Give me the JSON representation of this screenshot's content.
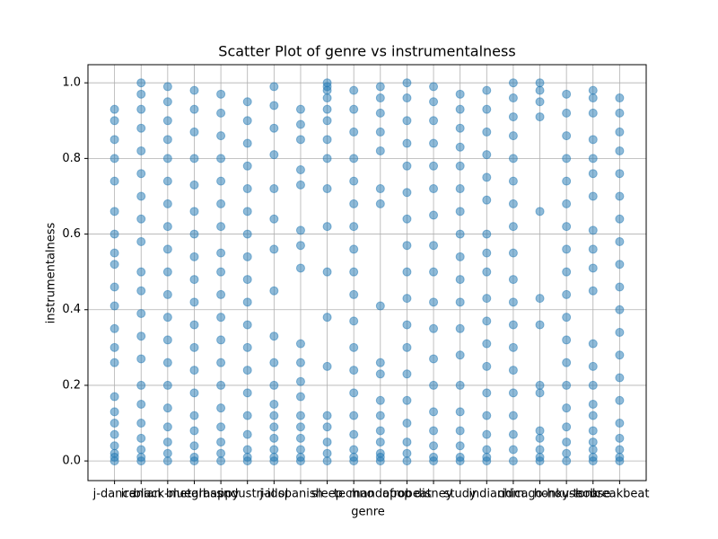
{
  "chart_data": {
    "type": "scatter",
    "title": "Scatter Plot of genre vs instrumentalness",
    "x_label": "genre",
    "y_label": "instrumentalness",
    "categories": [
      "j-dance",
      "iranian",
      "black-metal",
      "bluegrass",
      "happy",
      "industrial",
      "j-idol",
      "spanish",
      "sleep",
      "techno",
      "mandopop",
      "afrobeat",
      "disney",
      "study",
      "indian",
      "idm",
      "chicago-house",
      "honky-tonk",
      "house",
      "breakbeat"
    ],
    "values": [
      [
        0.93,
        0.9,
        0.85,
        0.8,
        0.74,
        0.66,
        0.6,
        0.55,
        0.52,
        0.46,
        0.41,
        0.35,
        0.3,
        0.26,
        0.17,
        0.13,
        0.1,
        0.07,
        0.04,
        0.02,
        0.01,
        0
      ],
      [
        1.0,
        0.97,
        0.93,
        0.88,
        0.82,
        0.76,
        0.7,
        0.64,
        0.58,
        0.5,
        0.45,
        0.39,
        0.33,
        0.27,
        0.2,
        0.15,
        0.1,
        0.06,
        0.03,
        0.01,
        0
      ],
      [
        0.99,
        0.95,
        0.9,
        0.85,
        0.8,
        0.74,
        0.68,
        0.62,
        0.56,
        0.5,
        0.44,
        0.38,
        0.32,
        0.26,
        0.2,
        0.14,
        0.09,
        0.05,
        0.02,
        0
      ],
      [
        0.98,
        0.93,
        0.87,
        0.8,
        0.73,
        0.66,
        0.6,
        0.54,
        0.48,
        0.42,
        0.36,
        0.3,
        0.24,
        0.18,
        0.12,
        0.08,
        0.04,
        0.01,
        0
      ],
      [
        0.97,
        0.92,
        0.86,
        0.8,
        0.74,
        0.68,
        0.62,
        0.55,
        0.5,
        0.44,
        0.38,
        0.32,
        0.26,
        0.2,
        0.14,
        0.09,
        0.05,
        0.02,
        0
      ],
      [
        0.95,
        0.9,
        0.84,
        0.78,
        0.72,
        0.66,
        0.6,
        0.54,
        0.48,
        0.42,
        0.36,
        0.3,
        0.24,
        0.18,
        0.12,
        0.07,
        0.03,
        0.01,
        0
      ],
      [
        0.99,
        0.94,
        0.88,
        0.81,
        0.72,
        0.64,
        0.56,
        0.45,
        0.33,
        0.26,
        0.2,
        0.15,
        0.12,
        0.09,
        0.06,
        0.03,
        0.01,
        0
      ],
      [
        0.93,
        0.89,
        0.85,
        0.77,
        0.73,
        0.61,
        0.57,
        0.51,
        0.31,
        0.26,
        0.21,
        0.17,
        0.12,
        0.09,
        0.06,
        0.03,
        0.01,
        0
      ],
      [
        1.0,
        0.99,
        0.98,
        0.96,
        0.93,
        0.9,
        0.85,
        0.8,
        0.72,
        0.62,
        0.5,
        0.38,
        0.25,
        0.12,
        0.09,
        0.05,
        0.02,
        0
      ],
      [
        0.98,
        0.93,
        0.87,
        0.8,
        0.74,
        0.68,
        0.62,
        0.56,
        0.5,
        0.44,
        0.37,
        0.3,
        0.24,
        0.18,
        0.12,
        0.07,
        0.03,
        0.01,
        0
      ],
      [
        0.99,
        0.96,
        0.92,
        0.87,
        0.82,
        0.72,
        0.68,
        0.41,
        0.26,
        0.23,
        0.16,
        0.12,
        0.08,
        0.05,
        0.02,
        0.01,
        0
      ],
      [
        1.0,
        0.96,
        0.9,
        0.84,
        0.78,
        0.71,
        0.64,
        0.57,
        0.5,
        0.43,
        0.36,
        0.3,
        0.23,
        0.16,
        0.1,
        0.05,
        0.02,
        0
      ],
      [
        0.99,
        0.95,
        0.9,
        0.84,
        0.78,
        0.72,
        0.65,
        0.57,
        0.5,
        0.42,
        0.35,
        0.27,
        0.2,
        0.13,
        0.08,
        0.04,
        0.01,
        0
      ],
      [
        0.97,
        0.93,
        0.88,
        0.83,
        0.78,
        0.72,
        0.66,
        0.6,
        0.54,
        0.48,
        0.42,
        0.35,
        0.28,
        0.2,
        0.13,
        0.08,
        0.04,
        0.01,
        0
      ],
      [
        0.98,
        0.93,
        0.87,
        0.81,
        0.75,
        0.69,
        0.6,
        0.55,
        0.5,
        0.43,
        0.37,
        0.31,
        0.25,
        0.18,
        0.12,
        0.07,
        0.03,
        0.01,
        0
      ],
      [
        1.0,
        0.96,
        0.91,
        0.86,
        0.8,
        0.74,
        0.68,
        0.62,
        0.55,
        0.48,
        0.42,
        0.36,
        0.3,
        0.24,
        0.18,
        0.12,
        0.07,
        0.03,
        0
      ],
      [
        1.0,
        0.98,
        0.95,
        0.91,
        0.66,
        0.43,
        0.36,
        0.2,
        0.18,
        0.08,
        0.06,
        0.03,
        0.01,
        0
      ],
      [
        0.97,
        0.92,
        0.86,
        0.8,
        0.74,
        0.68,
        0.62,
        0.56,
        0.5,
        0.44,
        0.38,
        0.32,
        0.26,
        0.2,
        0.14,
        0.09,
        0.05,
        0.02,
        0
      ],
      [
        0.98,
        0.96,
        0.92,
        0.85,
        0.8,
        0.76,
        0.7,
        0.61,
        0.56,
        0.51,
        0.45,
        0.31,
        0.25,
        0.2,
        0.15,
        0.12,
        0.08,
        0.05,
        0.03,
        0.01,
        0
      ],
      [
        0.96,
        0.92,
        0.87,
        0.82,
        0.76,
        0.7,
        0.64,
        0.58,
        0.52,
        0.46,
        0.4,
        0.34,
        0.28,
        0.22,
        0.16,
        0.1,
        0.06,
        0.03,
        0.01,
        0
      ]
    ],
    "color": "#1f77b4",
    "xlim": [
      -1,
      20
    ],
    "ylim": [
      -0.052,
      1.048
    ],
    "yticks": [
      {
        "value": 0,
        "label": "0.0"
      },
      {
        "value": 0.2,
        "label": "0.2"
      },
      {
        "value": 0.4,
        "label": "0.4"
      },
      {
        "value": 0.6,
        "label": "0.6"
      },
      {
        "value": 0.8,
        "label": "0.8"
      },
      {
        "value": 1,
        "label": "1.0"
      }
    ],
    "grid": true
  }
}
